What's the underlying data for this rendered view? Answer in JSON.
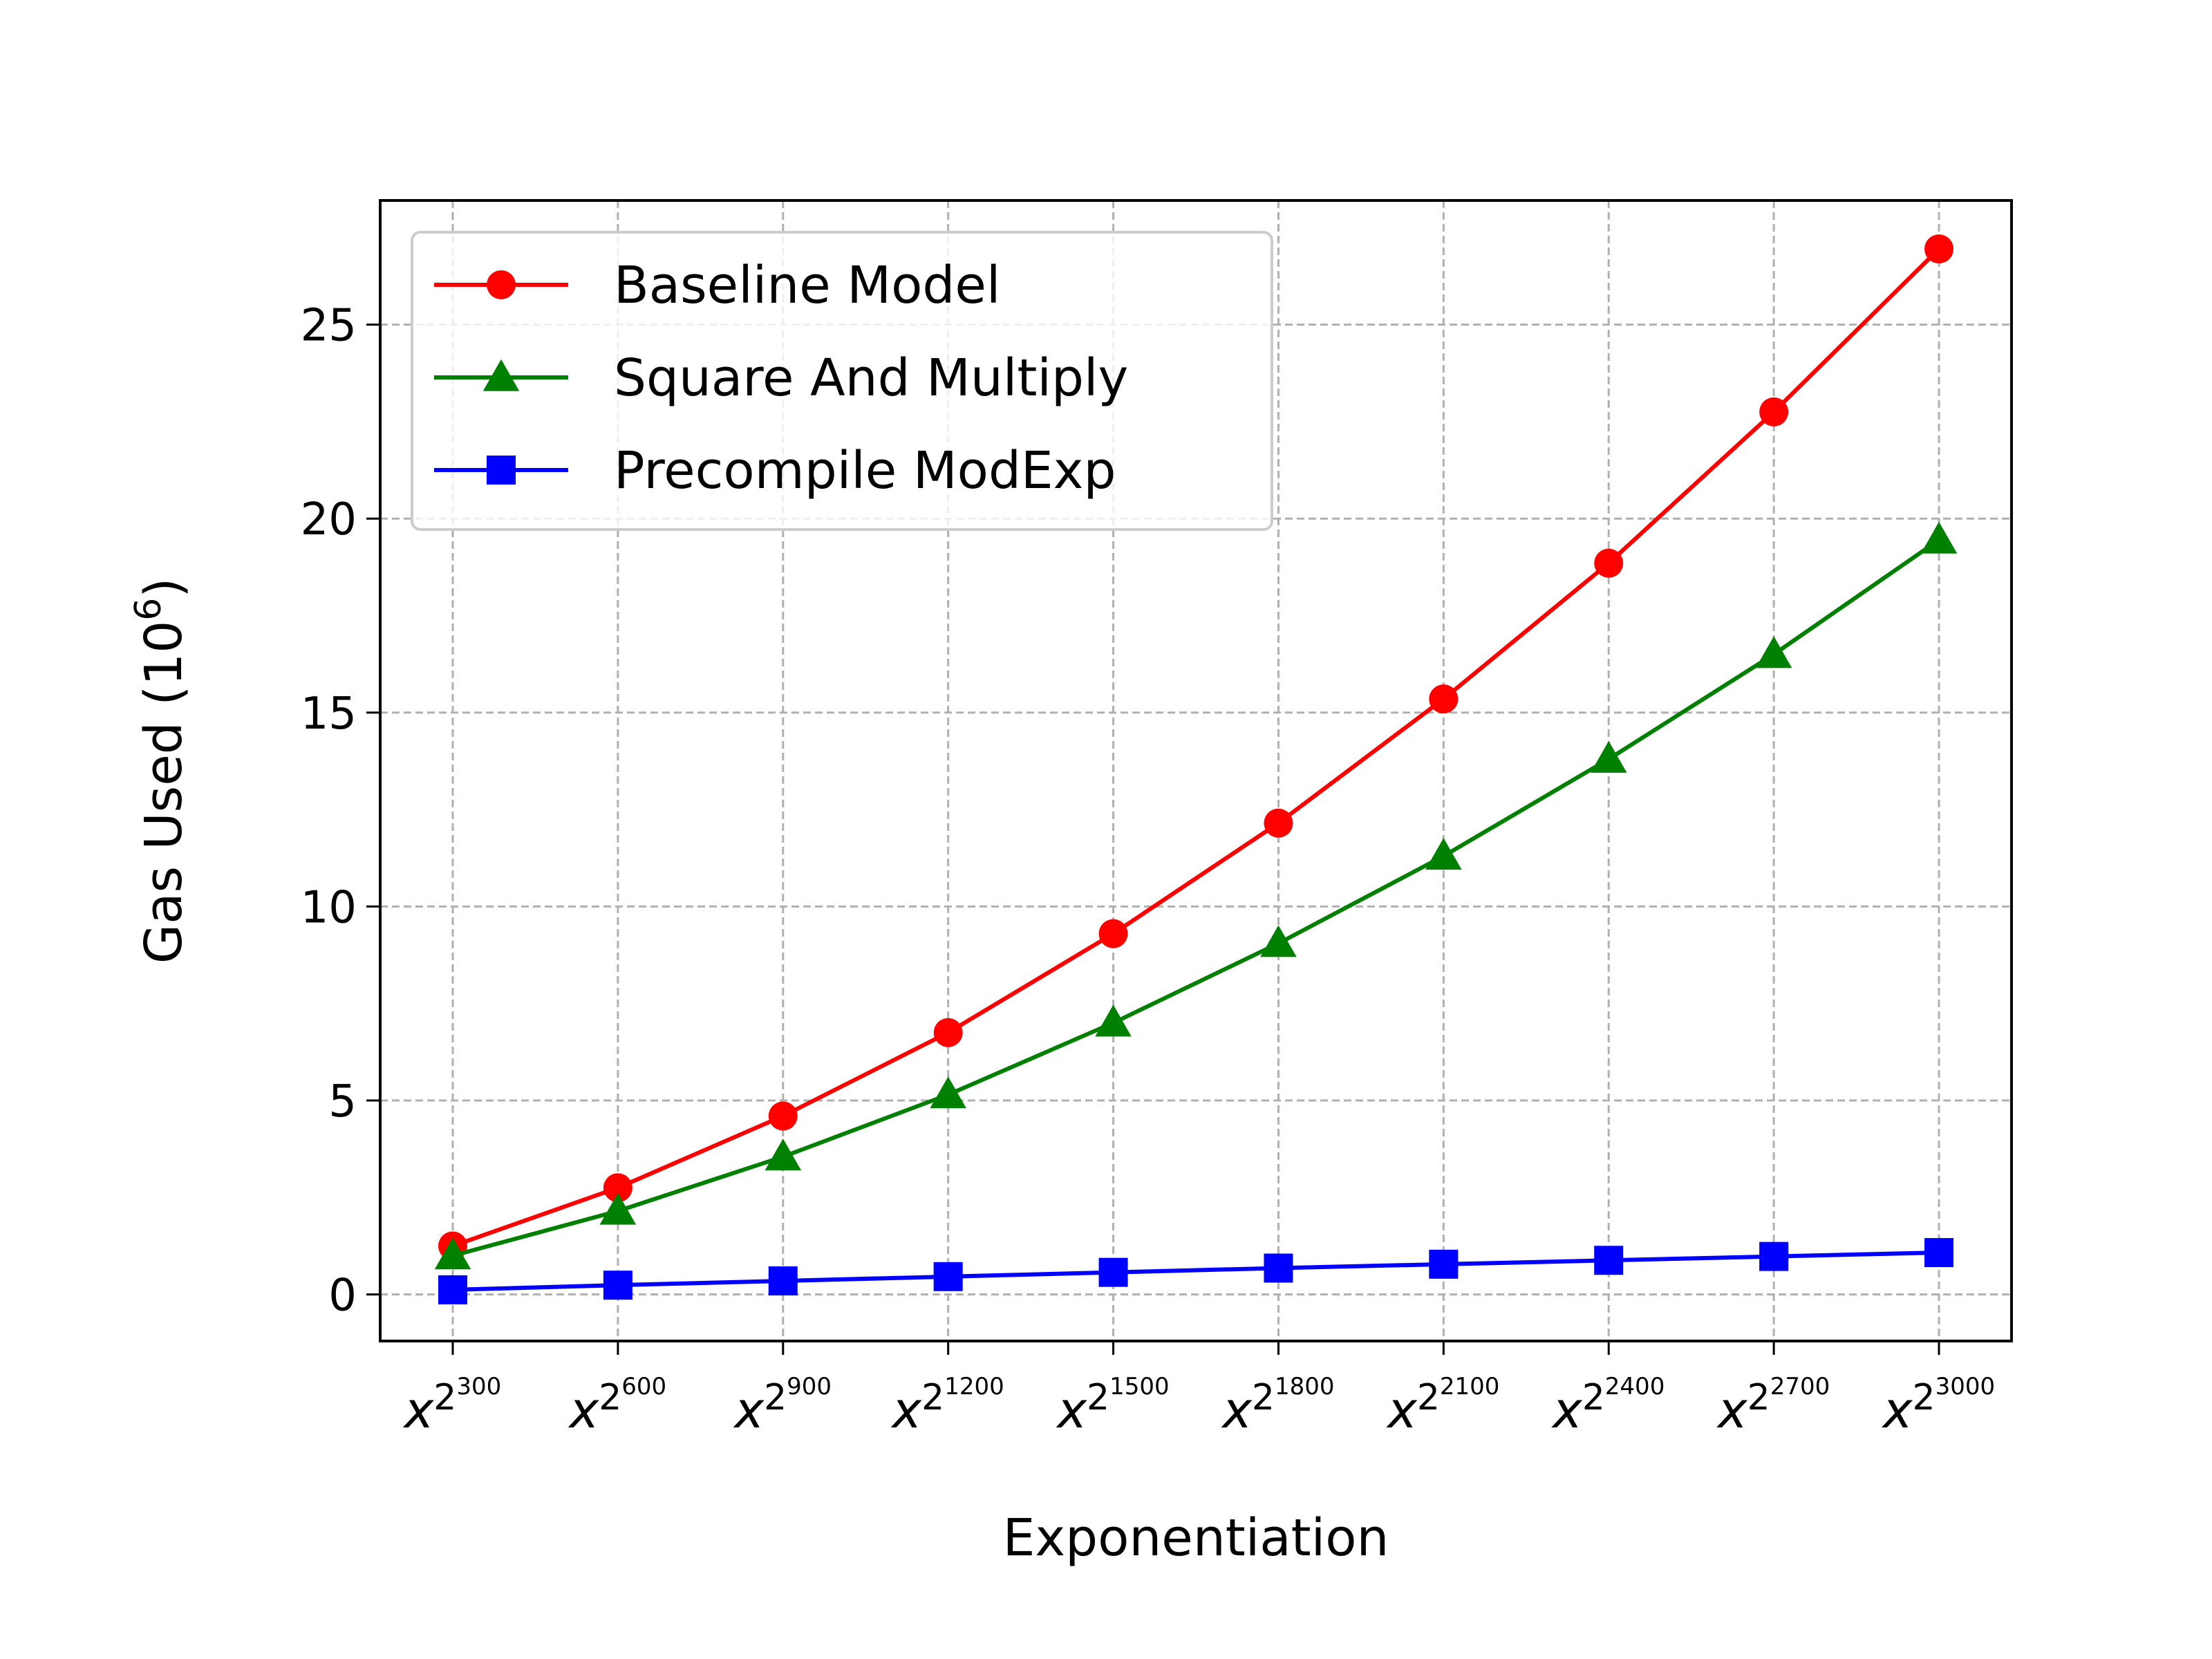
{
  "chart_data": {
    "type": "line",
    "xlabel": "Exponentiation",
    "ylabel": "Gas Used (10",
    "ylabel_sup": "6",
    "ylabel_close": ")",
    "categories": [
      {
        "base": "x",
        "sup": "2",
        "supsup": "300"
      },
      {
        "base": "x",
        "sup": "2",
        "supsup": "600"
      },
      {
        "base": "x",
        "sup": "2",
        "supsup": "900"
      },
      {
        "base": "x",
        "sup": "2",
        "supsup": "1200"
      },
      {
        "base": "x",
        "sup": "2",
        "supsup": "1500"
      },
      {
        "base": "x",
        "sup": "2",
        "supsup": "1800"
      },
      {
        "base": "x",
        "sup": "2",
        "supsup": "2100"
      },
      {
        "base": "x",
        "sup": "2",
        "supsup": "2400"
      },
      {
        "base": "x",
        "sup": "2",
        "supsup": "2700"
      },
      {
        "base": "x",
        "sup": "2",
        "supsup": "3000"
      }
    ],
    "ylim": [
      -1.2,
      28.2
    ],
    "yticks": [
      0,
      5,
      10,
      15,
      20,
      25
    ],
    "grid": true,
    "legend_position": "top-left",
    "series": [
      {
        "name": "Baseline Model",
        "color": "#ff0000",
        "marker": "circle",
        "values": [
          1.25,
          2.75,
          4.6,
          6.75,
          9.3,
          12.15,
          15.35,
          18.85,
          22.75,
          26.95
        ]
      },
      {
        "name": "Square And Multiply",
        "color": "#008000",
        "marker": "triangle",
        "values": [
          1.0,
          2.15,
          3.55,
          5.15,
          7.0,
          9.05,
          11.3,
          13.8,
          16.5,
          19.45
        ]
      },
      {
        "name": "Precompile ModExp",
        "color": "#0000ff",
        "marker": "square",
        "values": [
          0.12,
          0.24,
          0.35,
          0.46,
          0.57,
          0.68,
          0.78,
          0.88,
          0.98,
          1.08
        ]
      }
    ]
  }
}
